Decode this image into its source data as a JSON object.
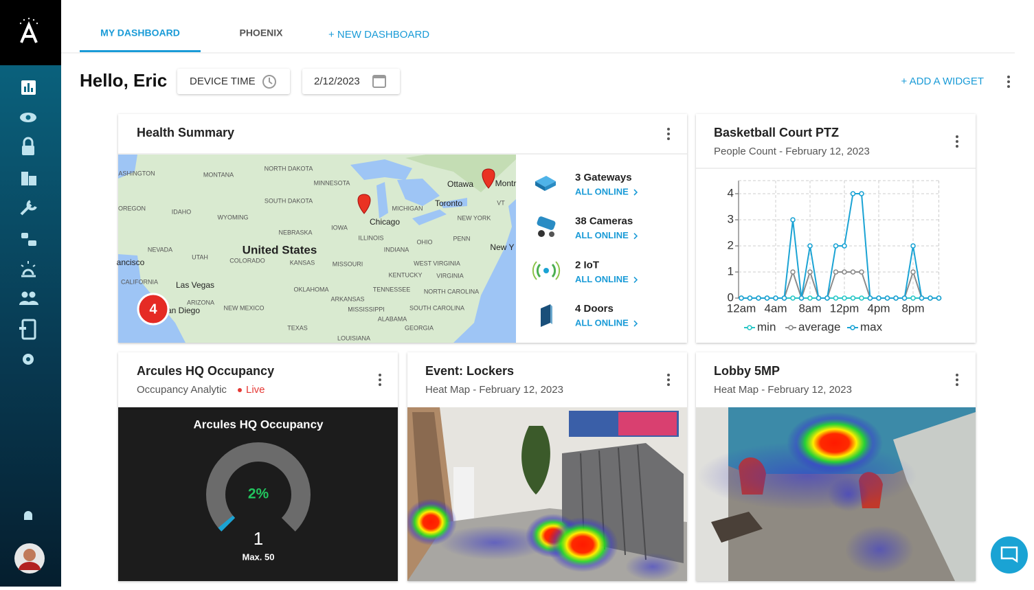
{
  "nav": {
    "tabs": [
      "MY DASHBOARD",
      "PHOENIX"
    ],
    "new_dashboard": "+ NEW DASHBOARD"
  },
  "header": {
    "greeting": "Hello, Eric",
    "device_time": "DEVICE TIME",
    "date": "2/12/2023",
    "add_widget": "+ ADD A WIDGET"
  },
  "health_summary": {
    "title": "Health Summary",
    "map": {
      "labels": [
        "ASHINGTON",
        "MONTANA",
        "NORTH DAKOTA",
        "MINNESOTA",
        "SOUTH DAKOTA",
        "WYOMING",
        "IDAHO",
        "OREGON",
        "NEBRASKA",
        "IOWA",
        "ILLINOIS",
        "MICHIGAN",
        "Chicago",
        "Toronto",
        "Ottawa",
        "Montr",
        "NEVADA",
        "UTAH",
        "COLORADO",
        "KANSAS",
        "MISSOURI",
        "INDIANA",
        "OHIO",
        "NEW YORK",
        "PENN",
        "United States",
        "KENTUCKY",
        "WEST VIRGINIA",
        "VIRGINIA",
        "OKLAHOMA",
        "TENNESSEE",
        "NORTH CAROLINA",
        "ARKANSAS",
        "MISSISSIPPI",
        "SOUTH CAROLINA",
        "ALABAMA",
        "GEORGIA",
        "TEXAS",
        "NEW MEXICO",
        "ARIZONA",
        "CALIFORNIA",
        "Las Vegas",
        "San Diego",
        "LOUISIANA",
        "ancisco",
        "New Y",
        "VT"
      ],
      "cluster_count": 4
    },
    "devices": [
      {
        "label": "3 Gateways",
        "status": "ALL ONLINE"
      },
      {
        "label": "38 Cameras",
        "status": "ALL ONLINE"
      },
      {
        "label": "2 IoT",
        "status": "ALL ONLINE"
      },
      {
        "label": "4 Doors",
        "status": "ALL ONLINE"
      }
    ]
  },
  "chart_data": {
    "type": "line",
    "title": "Basketball Court PTZ",
    "subtitle": "People Count - February 12, 2023",
    "categories": [
      "12am",
      null,
      null,
      null,
      "4am",
      null,
      null,
      null,
      "8am",
      null,
      null,
      null,
      "12pm",
      null,
      null,
      null,
      "4pm",
      null,
      null,
      null,
      "8pm",
      null,
      null,
      null
    ],
    "series": [
      {
        "name": "min",
        "color": "#26c6c6",
        "values": [
          0,
          0,
          0,
          0,
          0,
          0,
          0,
          0,
          0,
          0,
          0,
          0,
          0,
          0,
          0,
          0,
          0,
          0,
          0,
          0,
          0,
          0,
          0,
          0
        ]
      },
      {
        "name": "average",
        "color": "#8a8a8a",
        "values": [
          0,
          0,
          0,
          0,
          0,
          0,
          1,
          0,
          1,
          0,
          0,
          1,
          1,
          1,
          1,
          0,
          0,
          0,
          0,
          0,
          1,
          0,
          0,
          0
        ]
      },
      {
        "name": "max",
        "color": "#1aa3d4",
        "values": [
          0,
          0,
          0,
          0,
          0,
          0,
          3,
          0,
          2,
          0,
          0,
          2,
          2,
          4,
          4,
          0,
          0,
          0,
          0,
          0,
          2,
          0,
          0,
          0
        ]
      }
    ],
    "ylim": [
      0,
      4.5
    ],
    "yticks": [
      0,
      1,
      2,
      3,
      4
    ],
    "grid": true,
    "legend": "bottom"
  },
  "occupancy": {
    "title": "Arcules HQ Occupancy",
    "subtitle": "Occupancy Analytic",
    "live": "Live",
    "panel_title": "Arcules HQ Occupancy",
    "percent": 2,
    "percent_label": "2%",
    "count": 1,
    "max_label": "Max. 50"
  },
  "lockers": {
    "title": "Event: Lockers",
    "subtitle": "Heat Map - February 12, 2023"
  },
  "lobby": {
    "title": "Lobby 5MP",
    "subtitle": "Heat Map - February 12, 2023"
  }
}
